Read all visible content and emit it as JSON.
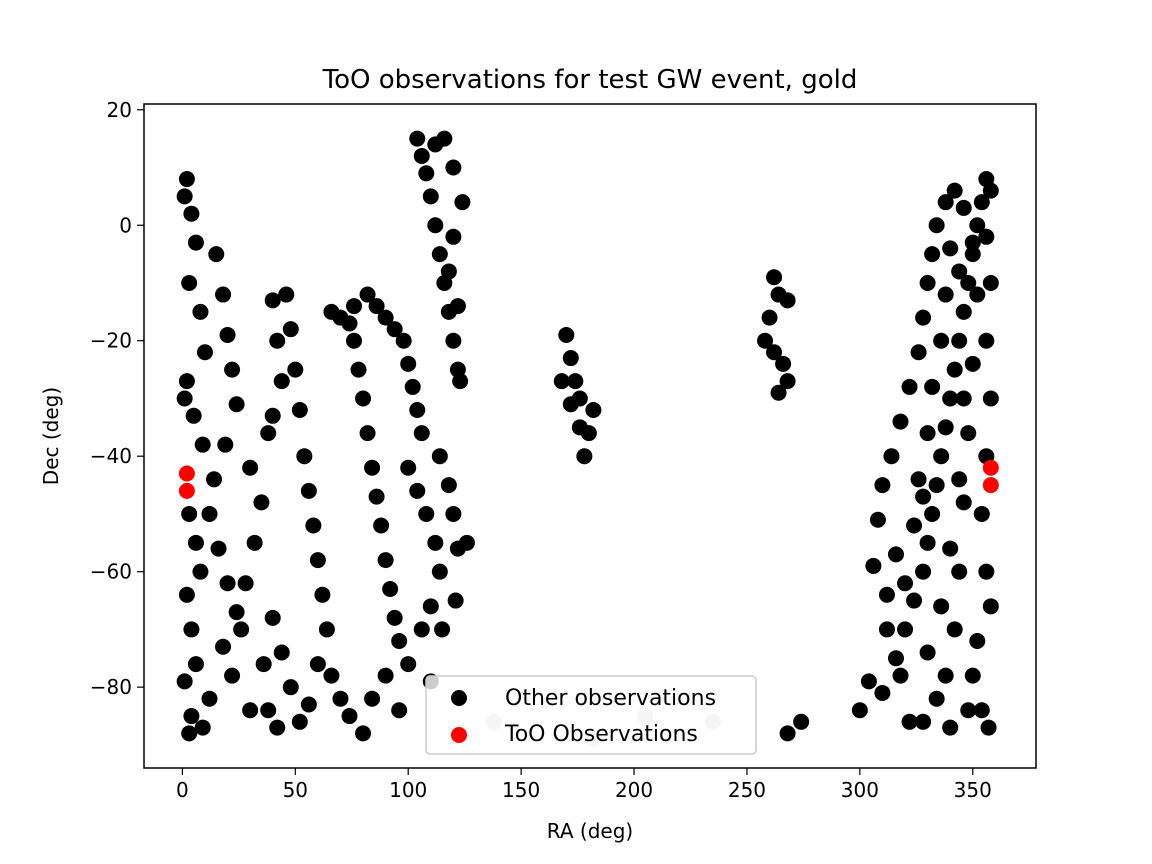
{
  "chart_data": {
    "type": "scatter",
    "title": "ToO observations for test GW event, gold",
    "xlabel": "RA (deg)",
    "ylabel": "Dec (deg)",
    "xlim": [
      -17,
      378
    ],
    "ylim": [
      -94,
      21
    ],
    "x_ticks": [
      0,
      50,
      100,
      150,
      200,
      250,
      300,
      350
    ],
    "y_ticks": [
      -80,
      -60,
      -40,
      -20,
      0,
      20
    ],
    "grid": false,
    "legend_position": "lower center",
    "series": [
      {
        "name": "Other observations",
        "color": "#000000",
        "marker": "circle",
        "points": [
          [
            2,
            8
          ],
          [
            1,
            5
          ],
          [
            4,
            2
          ],
          [
            6,
            -3
          ],
          [
            3,
            -10
          ],
          [
            8,
            -15
          ],
          [
            10,
            -22
          ],
          [
            2,
            -27
          ],
          [
            5,
            -33
          ],
          [
            9,
            -38
          ],
          [
            1,
            -30
          ],
          [
            3,
            -50
          ],
          [
            6,
            -55
          ],
          [
            8,
            -60
          ],
          [
            2,
            -64
          ],
          [
            4,
            -70
          ],
          [
            6,
            -76
          ],
          [
            1,
            -79
          ],
          [
            4,
            -85
          ],
          [
            3,
            -88
          ],
          [
            9,
            -87
          ],
          [
            12,
            -82
          ],
          [
            15,
            -5
          ],
          [
            18,
            -12
          ],
          [
            20,
            -19
          ],
          [
            22,
            -25
          ],
          [
            24,
            -31
          ],
          [
            19,
            -38
          ],
          [
            14,
            -44
          ],
          [
            12,
            -50
          ],
          [
            16,
            -56
          ],
          [
            20,
            -62
          ],
          [
            24,
            -67
          ],
          [
            18,
            -73
          ],
          [
            22,
            -78
          ],
          [
            30,
            -84
          ],
          [
            26,
            -70
          ],
          [
            28,
            -62
          ],
          [
            32,
            -55
          ],
          [
            35,
            -48
          ],
          [
            30,
            -42
          ],
          [
            38,
            -36
          ],
          [
            40,
            -13
          ],
          [
            42,
            -20
          ],
          [
            44,
            -27
          ],
          [
            40,
            -33
          ],
          [
            46,
            -12
          ],
          [
            48,
            -18
          ],
          [
            50,
            -25
          ],
          [
            52,
            -32
          ],
          [
            54,
            -40
          ],
          [
            56,
            -46
          ],
          [
            58,
            -52
          ],
          [
            60,
            -58
          ],
          [
            62,
            -64
          ],
          [
            64,
            -70
          ],
          [
            60,
            -76
          ],
          [
            56,
            -83
          ],
          [
            52,
            -86
          ],
          [
            48,
            -80
          ],
          [
            44,
            -74
          ],
          [
            40,
            -68
          ],
          [
            36,
            -76
          ],
          [
            38,
            -84
          ],
          [
            42,
            -87
          ],
          [
            66,
            -15
          ],
          [
            70,
            -16
          ],
          [
            74,
            -17
          ],
          [
            76,
            -20
          ],
          [
            78,
            -25
          ],
          [
            80,
            -30
          ],
          [
            82,
            -36
          ],
          [
            84,
            -42
          ],
          [
            86,
            -47
          ],
          [
            88,
            -52
          ],
          [
            90,
            -58
          ],
          [
            92,
            -63
          ],
          [
            94,
            -68
          ],
          [
            96,
            -72
          ],
          [
            90,
            -78
          ],
          [
            84,
            -82
          ],
          [
            80,
            -88
          ],
          [
            74,
            -85
          ],
          [
            70,
            -82
          ],
          [
            66,
            -78
          ],
          [
            76,
            -14
          ],
          [
            82,
            -12
          ],
          [
            86,
            -14
          ],
          [
            90,
            -16
          ],
          [
            94,
            -18
          ],
          [
            98,
            -20
          ],
          [
            100,
            -24
          ],
          [
            102,
            -28
          ],
          [
            104,
            -32
          ],
          [
            106,
            -36
          ],
          [
            100,
            -42
          ],
          [
            104,
            -46
          ],
          [
            108,
            -50
          ],
          [
            112,
            -55
          ],
          [
            114,
            -60
          ],
          [
            110,
            -66
          ],
          [
            106,
            -70
          ],
          [
            100,
            -76
          ],
          [
            96,
            -84
          ],
          [
            110,
            -79
          ],
          [
            104,
            15
          ],
          [
            106,
            12
          ],
          [
            108,
            9
          ],
          [
            110,
            5
          ],
          [
            112,
            0
          ],
          [
            114,
            -5
          ],
          [
            116,
            -10
          ],
          [
            118,
            -15
          ],
          [
            120,
            -20
          ],
          [
            122,
            -25
          ],
          [
            123,
            -27
          ],
          [
            112,
            14
          ],
          [
            116,
            15
          ],
          [
            120,
            10
          ],
          [
            124,
            4
          ],
          [
            120,
            -2
          ],
          [
            118,
            -8
          ],
          [
            122,
            -14
          ],
          [
            114,
            -40
          ],
          [
            118,
            -45
          ],
          [
            120,
            -50
          ],
          [
            122,
            -56
          ],
          [
            121,
            -65
          ],
          [
            126,
            -55
          ],
          [
            115,
            -70
          ],
          [
            170,
            -19
          ],
          [
            172,
            -23
          ],
          [
            174,
            -27
          ],
          [
            172,
            -31
          ],
          [
            176,
            -35
          ],
          [
            178,
            -40
          ],
          [
            180,
            -36
          ],
          [
            182,
            -32
          ],
          [
            176,
            -30
          ],
          [
            168,
            -27
          ],
          [
            262,
            -9
          ],
          [
            264,
            -12
          ],
          [
            260,
            -16
          ],
          [
            258,
            -20
          ],
          [
            266,
            -24
          ],
          [
            268,
            -27
          ],
          [
            264,
            -29
          ],
          [
            262,
            -22
          ],
          [
            268,
            -13
          ],
          [
            300,
            -84
          ],
          [
            304,
            -79
          ],
          [
            310,
            -81
          ],
          [
            316,
            -75
          ],
          [
            320,
            -70
          ],
          [
            324,
            -65
          ],
          [
            328,
            -60
          ],
          [
            330,
            -55
          ],
          [
            332,
            -50
          ],
          [
            334,
            -45
          ],
          [
            336,
            -40
          ],
          [
            338,
            -35
          ],
          [
            340,
            -30
          ],
          [
            342,
            -25
          ],
          [
            344,
            -20
          ],
          [
            346,
            -15
          ],
          [
            348,
            -10
          ],
          [
            350,
            -5
          ],
          [
            352,
            0
          ],
          [
            354,
            4
          ],
          [
            356,
            8
          ],
          [
            358,
            6
          ],
          [
            356,
            -2
          ],
          [
            358,
            -10
          ],
          [
            356,
            -20
          ],
          [
            358,
            -30
          ],
          [
            356,
            -40
          ],
          [
            354,
            -50
          ],
          [
            356,
            -60
          ],
          [
            358,
            -66
          ],
          [
            352,
            -72
          ],
          [
            350,
            -78
          ],
          [
            348,
            -84
          ],
          [
            354,
            -84
          ],
          [
            357,
            -87
          ],
          [
            340,
            -87
          ],
          [
            334,
            -82
          ],
          [
            328,
            -86
          ],
          [
            322,
            -86
          ],
          [
            312,
            -64
          ],
          [
            306,
            -59
          ],
          [
            308,
            -51
          ],
          [
            310,
            -45
          ],
          [
            314,
            -40
          ],
          [
            318,
            -34
          ],
          [
            322,
            -28
          ],
          [
            326,
            -22
          ],
          [
            328,
            -16
          ],
          [
            330,
            -10
          ],
          [
            332,
            -5
          ],
          [
            334,
            0
          ],
          [
            338,
            4
          ],
          [
            342,
            6
          ],
          [
            346,
            3
          ],
          [
            350,
            -3
          ],
          [
            352,
            -12
          ],
          [
            350,
            -24
          ],
          [
            348,
            -36
          ],
          [
            346,
            -48
          ],
          [
            344,
            -60
          ],
          [
            342,
            -70
          ],
          [
            338,
            -78
          ],
          [
            320,
            -62
          ],
          [
            324,
            -52
          ],
          [
            326,
            -44
          ],
          [
            330,
            -36
          ],
          [
            332,
            -28
          ],
          [
            336,
            -20
          ],
          [
            338,
            -12
          ],
          [
            340,
            -4
          ],
          [
            344,
            -8
          ],
          [
            346,
            -30
          ],
          [
            344,
            -44
          ],
          [
            340,
            -56
          ],
          [
            336,
            -66
          ],
          [
            330,
            -74
          ],
          [
            318,
            -78
          ],
          [
            312,
            -70
          ],
          [
            274,
            -86
          ],
          [
            268,
            -88
          ],
          [
            328,
            -47
          ],
          [
            316,
            -57
          ]
        ]
      },
      {
        "name": "ToO Observations",
        "color": "#ff0000",
        "marker": "circle",
        "points": [
          [
            2,
            -43
          ],
          [
            2,
            -46
          ],
          [
            358,
            -42
          ],
          [
            358,
            -45
          ]
        ]
      }
    ],
    "faded_points": {
      "color": "#cccccc",
      "points": [
        [
          138,
          -86
        ],
        [
          182,
          -89
        ],
        [
          205,
          -85
        ],
        [
          235,
          -86
        ]
      ]
    }
  }
}
